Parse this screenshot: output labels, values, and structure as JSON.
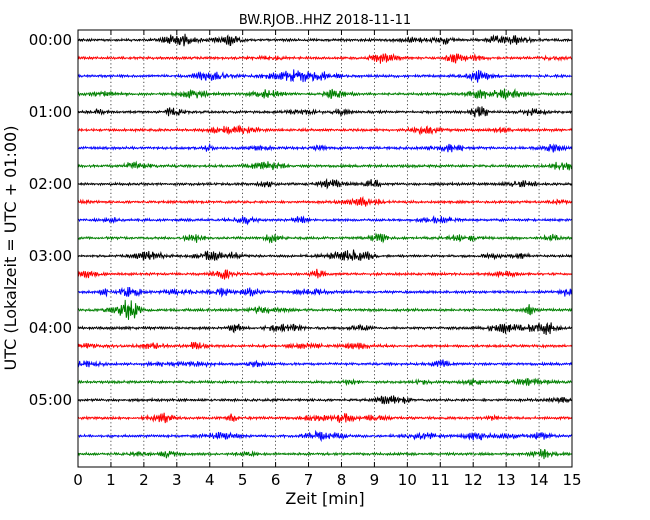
{
  "chart_data": {
    "type": "line",
    "title": "BW.RJOB..HHZ 2018-11-11",
    "xlabel": "Zeit  [min]",
    "ylabel": "UTC (Lokalzeit = UTC + 01:00)",
    "xlim": [
      0,
      15
    ],
    "x_ticks": [
      "0",
      "1",
      "2",
      "3",
      "4",
      "5",
      "6",
      "7",
      "8",
      "9",
      "10",
      "11",
      "12",
      "13",
      "14",
      "15"
    ],
    "y_tick_labels": [
      "00:00",
      "01:00",
      "02:00",
      "03:00",
      "04:00",
      "05:00"
    ],
    "minutes_per_trace": 15,
    "trace_count": 24,
    "trace_colors": [
      "#000000",
      "#ff0000",
      "#0000ff",
      "#008000"
    ],
    "grid": "vertical dotted lines at each minute",
    "series_note": "continuous seismogram; each row is one 15-minute segment, colors cycle black, red, blue, green"
  }
}
